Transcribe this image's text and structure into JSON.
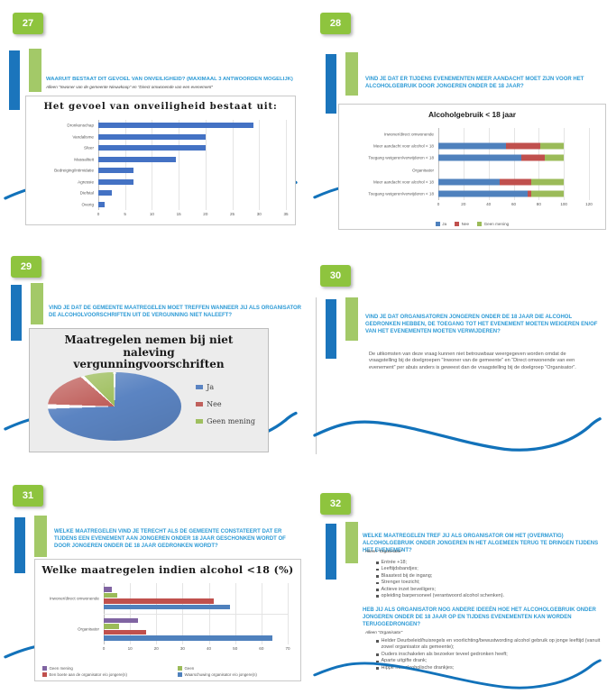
{
  "colors": {
    "badge_green": "#8EC43E",
    "accent_blue": "#1B75BC",
    "accent_green": "#A3C968",
    "title_blue": "#2E9BD6",
    "wave_blue": "#1272BA",
    "bar_blue": "#4F81BD",
    "bar_red": "#C0504D",
    "bar_green": "#9BBB59",
    "bar_purple": "#8064A2"
  },
  "slides": [
    {
      "number": "27",
      "title": "WAARUIT BESTAAT DIT GEVOEL VAN ONVEILIGHEID? (MAXIMAAL 3 ANTWOORDEN MOGELIJK)",
      "subtitle": "Alleen “Inwoner van de gemeente Nieuwkoop” en “Direct omwonende van een evenement”",
      "chart_data": {
        "type": "bar",
        "title": "Het gevoel van onveiligheid bestaat uit:",
        "categories": [
          "Dronkenschap",
          "Vandalisme",
          "Sfeer",
          "Massaliteit",
          "Bedreiging/intimidatie",
          "Agressie",
          "Diefstal",
          "Overig"
        ],
        "values": [
          29,
          20,
          20,
          14.5,
          6.5,
          6.5,
          2.5,
          1.2
        ],
        "xlim": [
          0,
          35
        ],
        "xticks": [
          0,
          5,
          10,
          15,
          20,
          25,
          30,
          35
        ],
        "bar_color": "#4472C4"
      }
    },
    {
      "number": "28",
      "title": "VIND JE DAT ER TIJDENS EVENEMENTEN MEER AANDACHT MOET ZIJN VOOR HET ALCOHOLGEBRUIK DOOR JONGEREN ONDER DE 18 JAAR?",
      "chart_data": {
        "type": "bar-stacked",
        "title": "Alcoholgebruik < 18 jaar",
        "series": [
          "Ja",
          "Nee",
          "Geen mening"
        ],
        "series_colors": [
          "#4F81BD",
          "#C0504D",
          "#9BBB59"
        ],
        "rows": [
          {
            "label": "Inwoner/direct omwonende",
            "values": null
          },
          {
            "label": "Meer aandacht voor alcohol < 18",
            "values": [
              54,
              27,
              19
            ]
          },
          {
            "label": "Toegang weigeren/verwijderen < 18",
            "values": [
              66,
              19,
              15
            ]
          },
          {
            "label": "Organisator",
            "values": null
          },
          {
            "label": "Meer aandacht voor alcohol < 18",
            "values": [
              49,
              25,
              26
            ]
          },
          {
            "label": "Toegang weigeren/verwijderen < 18",
            "values": [
              71,
              3,
              26
            ]
          }
        ],
        "xlim": [
          0,
          120
        ],
        "xticks": [
          0,
          20,
          40,
          60,
          80,
          100,
          120
        ]
      }
    },
    {
      "number": "29",
      "title": "VIND JE DAT DE GEMEENTE MAATREGELEN MOET TREFFEN WANNEER JIJ ALS ORGANISATOR DE ALCOHOLVOORSCHRIFTEN UIT DE VERGUNNING NIET NALEEFT?",
      "chart_data": {
        "type": "pie",
        "title": "Maatregelen nemen bij niet naleving vergunningvoorschriften",
        "labels": [
          "Ja",
          "Nee",
          "Geen mening"
        ],
        "values": [
          75,
          12,
          13
        ],
        "colors": [
          "#5B84C2",
          "#C0605C",
          "#9FBF5F"
        ]
      }
    },
    {
      "number": "30",
      "title": "VIND JE DAT ORGANISATOREN JONGEREN ONDER DE 18 JAAR DIE ALCOHOL GEDRONKEN HEBBEN, DE TOEGANG TOT HET EVENEMENT MOETEN WEIGEREN EN/OF VAN HET EVENEMENTEN MOETEN VERWIJDEREN?",
      "body": "De uitkomsten van deze vraag kunnen niet betrouwbaar weergegeven worden omdat de vraagstelling bij de doelgroepen “Inwoner van de gemeente” en “Direct omwonende van een evenement” per abuis anders is geweest dan de vraagstelling bij de doelgroep “Organisator”."
    },
    {
      "number": "31",
      "title": "WELKE MAATREGELEN VIND JE TERECHT ALS DE GEMEENTE CONSTATEERT DAT ER TIJDENS EEN EVENEMENT AAN JONGEREN ONDER 18 JAAR GESCHONKEN WORDT OF DOOR JONGEREN ONDER DE 18 JAAR GEDRONKEN WORDT?",
      "chart_data": {
        "type": "bar-grouped",
        "title": "Welke maatregelen indien alcohol <18 (%)",
        "series": [
          "Geen mening",
          "Geen",
          "Een boete aan de organisator e/o jongere(n)",
          "Waarschuwing organisator e/o jongere(n)"
        ],
        "series_colors": [
          "#8064A2",
          "#9BBB59",
          "#C0504D",
          "#4F81BD"
        ],
        "groups": [
          {
            "label": "Inwoner/direct omwonende",
            "values": [
              3,
              5,
              42,
              48
            ]
          },
          {
            "label": "Organisator",
            "values": [
              13,
              6,
              16,
              64
            ]
          }
        ],
        "xlim": [
          0,
          70
        ],
        "xticks": [
          0,
          10,
          20,
          30,
          40,
          50,
          60,
          70
        ]
      }
    },
    {
      "number": "32",
      "title": "WELKE MAATREGELEN TREF JIJ ALS ORGANISATOR OM HET (OVERMATIG) ALCOHOLGEBRUIK ONDER JONGEREN IN HET ALGEMEEN TERUG TE DRINGEN TIJDENS HET EVENEMENT?",
      "subtitle": "Alleen “Organisator”",
      "bullets": [
        "Entrée +18;",
        "Leeftijdsbandjes;",
        "Blaastest bij de ingang;",
        "Strenger toezicht;",
        "Actieve inzet beveiligers;",
        "opleiding barpersoneel (verantwoord alcohol schenken)."
      ],
      "title2": "HEB JIJ ALS ORGANISATOR NOG ANDERE IDEEËN HOE HET ALCOHOLGEBRUIK ONDER JONGEREN ONDER DE 18 JAAR OP EN TIJDENS EVENEMENTEN KAN WORDEN TERUGGEDRONGEN?",
      "subtitle2": "Alleen “Organisator”",
      "bullets2": [
        "Helder Deurbeleid/huisregels en voorlichting/bewustwording alcohol gebruik op jonge leeftijd (vanuit zowel organisator als gemeente);",
        "Ouders inschakelen als bezoeker teveel gedronken heeft;",
        "Aparte uitgifte drank;",
        "Hippe non alcoholische drankjes;"
      ]
    }
  ]
}
